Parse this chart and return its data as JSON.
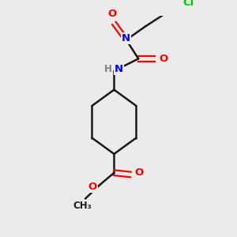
{
  "bg_color": "#ebebeb",
  "bond_color": "#1a1a1a",
  "colors": {
    "N": "#0000ff",
    "O": "#ff0000",
    "Cl": "#00cc00",
    "C": "#1a1a1a",
    "H": "#808080"
  }
}
